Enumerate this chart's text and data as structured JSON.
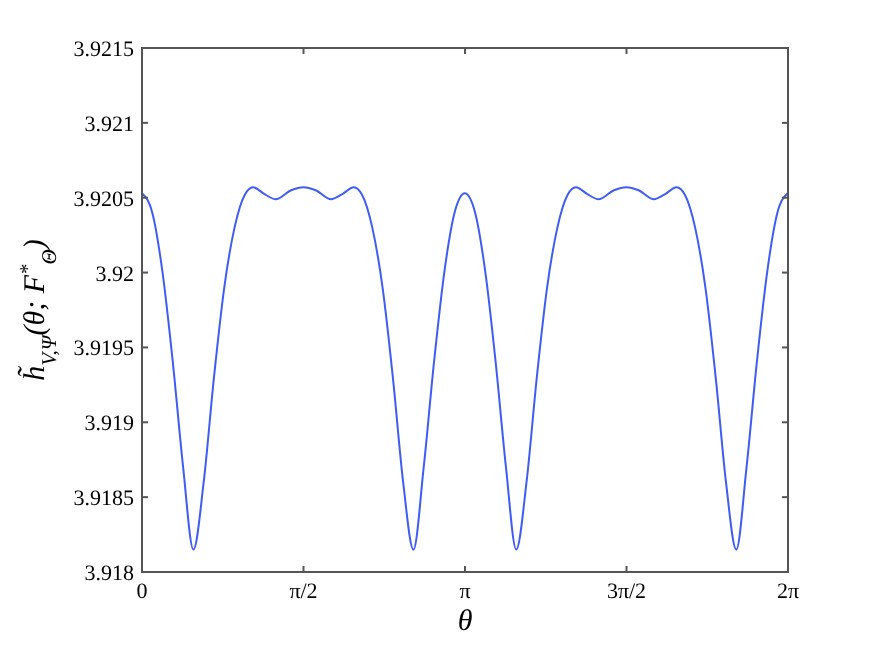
{
  "chart_data": {
    "type": "line",
    "xlabel": "θ",
    "ylabel": "h̃$_{V,Ψ}$(θ; F$^{*}$$_{Θ}$)",
    "xlim": [
      0,
      6.2832
    ],
    "xticks": [
      0,
      {
        "value": 1.5708,
        "label": "π/2"
      },
      {
        "value": 3.1416,
        "label": "π"
      },
      {
        "value": 4.7124,
        "label": "3π/2"
      },
      {
        "value": 6.2832,
        "label": "2π"
      }
    ],
    "ylim": [
      3.918,
      3.9215
    ],
    "yticks": [
      3.918,
      3.9185,
      3.919,
      3.9195,
      3.92,
      3.9205,
      3.921,
      3.9215
    ],
    "grid": false,
    "marker": "none",
    "line_style": "solid",
    "series": [
      {
        "color": "#3f5cf5",
        "x": [
          0,
          0.1,
          0.2,
          0.3,
          0.4,
          0.5,
          0.6,
          0.7,
          0.8,
          0.9,
          1.0,
          1.08,
          1.2,
          1.3,
          1.45,
          1.57,
          1.69,
          1.84,
          1.94,
          2.06,
          2.14,
          2.24,
          2.34,
          2.44,
          2.54,
          2.64,
          2.74,
          2.84,
          2.94,
          3.04,
          3.14,
          3.24,
          3.34,
          3.44,
          3.54,
          3.64,
          3.74,
          3.84,
          3.94,
          4.04,
          4.14,
          4.22,
          4.34,
          4.44,
          4.59,
          4.71,
          4.83,
          4.98,
          5.08,
          5.2,
          5.28,
          5.38,
          5.48,
          5.58,
          5.68,
          5.78,
          5.88,
          5.98,
          6.08,
          6.18,
          6.28
        ],
        "values": [
          3.92053,
          3.9204,
          3.92,
          3.9194,
          3.9187,
          3.91815,
          3.9186,
          3.9193,
          3.9199,
          3.9203,
          3.92052,
          3.92057,
          3.92052,
          3.92049,
          3.92055,
          3.92057,
          3.92055,
          3.92049,
          3.92052,
          3.92057,
          3.92052,
          3.9203,
          3.9199,
          3.9193,
          3.9186,
          3.91815,
          3.9187,
          3.9194,
          3.92,
          3.9204,
          3.92053,
          3.9204,
          3.92,
          3.9194,
          3.9187,
          3.91815,
          3.9186,
          3.9193,
          3.9199,
          3.9203,
          3.92052,
          3.92057,
          3.92052,
          3.92049,
          3.92055,
          3.92057,
          3.92055,
          3.92049,
          3.92052,
          3.92057,
          3.92052,
          3.9203,
          3.9199,
          3.9193,
          3.9186,
          3.91815,
          3.9187,
          3.9194,
          3.92,
          3.9204,
          3.92053
        ]
      }
    ]
  }
}
